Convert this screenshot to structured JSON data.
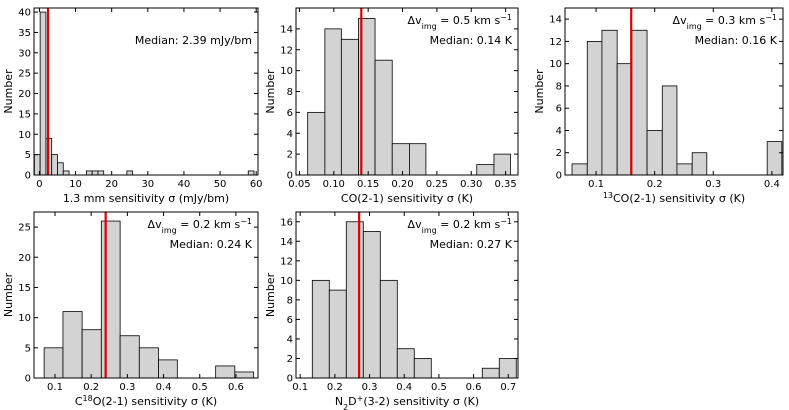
{
  "chart_data": [
    {
      "type": "histogram",
      "ylabel": [
        {
          "text": "Number"
        }
      ],
      "xlabel": [
        {
          "text": "1.3 mm sensitivity σ (mJy/bm)"
        }
      ],
      "bins": [
        -1.4,
        0.2,
        1.8,
        3.4,
        5.0,
        6.6,
        8.2,
        9.8,
        11.4,
        13.0,
        14.6,
        16.2,
        17.8,
        19.4,
        21.0,
        22.6,
        24.2,
        25.8,
        27.4,
        29.0,
        30.6,
        32.2,
        33.8,
        35.4,
        37.0,
        38.6,
        40.2,
        41.8,
        43.4,
        45.0,
        46.6,
        48.2,
        49.8,
        51.4,
        53.0,
        54.6,
        56.2,
        57.8,
        59.4
      ],
      "counts": [
        5,
        40,
        9,
        5,
        3,
        1,
        0,
        0,
        0,
        1,
        1,
        1,
        0,
        0,
        0,
        0,
        1,
        0,
        0,
        0,
        0,
        0,
        0,
        0,
        0,
        0,
        0,
        0,
        0,
        0,
        0,
        0,
        0,
        0,
        0,
        0,
        0,
        1
      ],
      "color": "#d3d3d3",
      "median": 2.39,
      "median_color": "#e00000",
      "annotations": [
        {
          "parts": [
            {
              "text": "Median: 2.39 mJy/bm"
            }
          ],
          "color": "#e00000"
        }
      ],
      "annotation_position": "center right",
      "xlim": [
        -1.5,
        60.5
      ],
      "ylim": [
        0,
        41
      ],
      "xticks": [
        0,
        10,
        20,
        30,
        40,
        50,
        60
      ],
      "yticks": [
        0,
        5,
        10,
        15,
        20,
        25,
        30,
        35,
        40
      ]
    },
    {
      "type": "histogram",
      "ylabel": [
        {
          "text": "Number"
        }
      ],
      "xlabel": [
        {
          "text": "CO(2-1) sensitivity σ (K)"
        }
      ],
      "bins": [
        0.062,
        0.087,
        0.111,
        0.136,
        0.16,
        0.185,
        0.21,
        0.234,
        0.259,
        0.283,
        0.308,
        0.333,
        0.357
      ],
      "counts": [
        6,
        14,
        13,
        15,
        11,
        3,
        3,
        0,
        0,
        0,
        1,
        2
      ],
      "color": "#d3d3d3",
      "median": 0.14,
      "median_color": "#e00000",
      "annotations": [
        {
          "parts": [
            {
              "text": "Δv"
            },
            {
              "text": "img",
              "script": "sub"
            },
            {
              "text": " = 0.5 km s"
            },
            {
              "text": "−1",
              "script": "sup"
            }
          ],
          "color": "#000000"
        },
        {
          "parts": [
            {
              "text": "Median: 0.14 K"
            }
          ],
          "color": "#e00000"
        }
      ],
      "annotation_position": "upper right",
      "xlim": [
        0.045,
        0.368
      ],
      "ylim": [
        0,
        16
      ],
      "xticks": [
        {
          "value": 0.05,
          "label": "0.05"
        },
        {
          "value": 0.1,
          "label": "0.10"
        },
        {
          "value": 0.15,
          "label": "0.15"
        },
        {
          "value": 0.2,
          "label": "0.20"
        },
        {
          "value": 0.25,
          "label": "0.25"
        },
        {
          "value": 0.3,
          "label": "0.30"
        },
        {
          "value": 0.35,
          "label": "0.35"
        }
      ],
      "yticks": [
        0,
        2,
        4,
        6,
        8,
        10,
        12,
        14
      ]
    },
    {
      "type": "histogram",
      "ylabel": [
        {
          "text": "Number"
        }
      ],
      "xlabel": [
        {
          "text": "13",
          "script": "sup"
        },
        {
          "text": "CO(2-1) sensitivity σ (K)"
        }
      ],
      "bins": [
        0.059,
        0.085,
        0.11,
        0.136,
        0.161,
        0.187,
        0.213,
        0.238,
        0.264,
        0.289,
        0.315,
        0.341,
        0.366,
        0.392,
        0.417
      ],
      "counts": [
        1,
        12,
        13,
        10,
        13,
        4,
        8,
        1,
        2,
        0,
        0,
        0,
        0,
        3
      ],
      "color": "#d3d3d3",
      "median": 0.16,
      "median_color": "#e00000",
      "annotations": [
        {
          "parts": [
            {
              "text": "Δv"
            },
            {
              "text": "img",
              "script": "sub"
            },
            {
              "text": " = 0.3 km s"
            },
            {
              "text": "−1",
              "script": "sup"
            }
          ],
          "color": "#000000"
        },
        {
          "parts": [
            {
              "text": "Median: 0.16 K"
            }
          ],
          "color": "#e00000"
        }
      ],
      "annotation_position": "upper right",
      "xlim": [
        0.047,
        0.419
      ],
      "ylim": [
        0,
        15
      ],
      "xticks": [
        0.1,
        0.2,
        0.3,
        0.4
      ],
      "yticks": [
        0,
        2,
        4,
        6,
        8,
        10,
        12,
        14
      ]
    },
    {
      "type": "histogram",
      "ylabel": [
        {
          "text": "Number"
        }
      ],
      "xlabel": [
        {
          "text": "C"
        },
        {
          "text": "18",
          "script": "sup"
        },
        {
          "text": "O(2-1) sensitivity σ (K)"
        }
      ],
      "bins": [
        0.07,
        0.122,
        0.175,
        0.228,
        0.28,
        0.333,
        0.386,
        0.438,
        0.491,
        0.544,
        0.597,
        0.649
      ],
      "counts": [
        5,
        11,
        8,
        26,
        7,
        5,
        3,
        0,
        0,
        2,
        1
      ],
      "color": "#d3d3d3",
      "median": 0.24,
      "median_color": "#e00000",
      "annotations": [
        {
          "parts": [
            {
              "text": "Δv"
            },
            {
              "text": "img",
              "script": "sub"
            },
            {
              "text": " = 0.2 km s"
            },
            {
              "text": "−1",
              "script": "sup"
            }
          ],
          "color": "#000000"
        },
        {
          "parts": [
            {
              "text": "Median: 0.24 K"
            }
          ],
          "color": "#e00000"
        }
      ],
      "annotation_position": "upper right",
      "xlim": [
        0.042,
        0.661
      ],
      "ylim": [
        0,
        27.5
      ],
      "xticks": [
        0.1,
        0.2,
        0.3,
        0.4,
        0.5,
        0.6
      ],
      "yticks": [
        0,
        5,
        10,
        15,
        20,
        25
      ]
    },
    {
      "type": "histogram",
      "ylabel": [
        {
          "text": "Number"
        }
      ],
      "xlabel": [
        {
          "text": "N"
        },
        {
          "text": "2",
          "script": "sub"
        },
        {
          "text": "D"
        },
        {
          "text": "+",
          "script": "sup"
        },
        {
          "text": "(3-2) sensitivity σ (K)"
        }
      ],
      "bins": [
        0.135,
        0.184,
        0.233,
        0.282,
        0.331,
        0.38,
        0.429,
        0.478,
        0.527,
        0.576,
        0.625,
        0.674,
        0.723
      ],
      "counts": [
        10,
        9,
        16,
        15,
        10,
        3,
        2,
        0,
        0,
        0,
        1,
        2
      ],
      "color": "#d3d3d3",
      "median": 0.27,
      "median_color": "#e00000",
      "annotations": [
        {
          "parts": [
            {
              "text": "Δv"
            },
            {
              "text": "img",
              "script": "sub"
            },
            {
              "text": " = 0.2 km s"
            },
            {
              "text": "−1",
              "script": "sup"
            }
          ],
          "color": "#000000"
        },
        {
          "parts": [
            {
              "text": "Median: 0.27 K"
            }
          ],
          "color": "#e00000"
        }
      ],
      "annotation_position": "upper right",
      "xlim": [
        0.088,
        0.728
      ],
      "ylim": [
        0,
        17
      ],
      "xticks": [
        0.1,
        0.2,
        0.3,
        0.4,
        0.5,
        0.6,
        0.7
      ],
      "yticks": [
        0,
        2,
        4,
        6,
        8,
        10,
        12,
        14,
        16
      ]
    }
  ]
}
